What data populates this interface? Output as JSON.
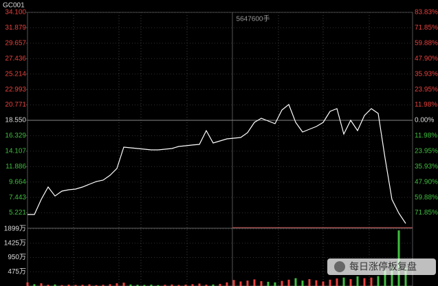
{
  "chart_data": [
    {
      "type": "line",
      "title": "GC001",
      "annotation": "5647600手",
      "values": [
        4.98,
        4.98,
        7.16,
        8.94,
        7.65,
        8.35,
        8.55,
        8.65,
        8.94,
        9.34,
        9.73,
        9.93,
        10.63,
        11.62,
        14.69,
        14.59,
        14.49,
        14.39,
        14.29,
        14.29,
        14.39,
        14.49,
        14.79,
        14.89,
        14.99,
        15.08,
        17.06,
        15.28,
        15.58,
        15.88,
        15.97,
        16.07,
        16.77,
        18.25,
        18.85,
        18.45,
        18.06,
        20.04,
        20.83,
        18.25,
        16.87,
        17.26,
        17.66,
        18.25,
        19.84,
        20.23,
        16.57,
        18.55,
        17.06,
        19.24,
        20.23,
        19.54,
        13.1,
        7.16,
        5.18,
        3.69
      ],
      "color": "#ffffff",
      "ylim": [
        3.0,
        34.1
      ],
      "yticks": [
        {
          "value": 34.1,
          "label": "34.100"
        },
        31.879,
        29.657,
        27.436,
        25.214,
        22.993,
        20.771,
        {
          "value": 18.55,
          "label": "18.550"
        },
        16.329,
        14.107,
        11.886,
        9.664,
        7.443,
        5.221
      ],
      "y2lim": [
        -83.83,
        83.83
      ],
      "y2ticks": [
        {
          "value": 83.83,
          "label": "83.83%"
        },
        {
          "value": 71.85,
          "label": "71.85%"
        },
        {
          "value": 59.88,
          "label": "59.88%"
        },
        {
          "value": 47.9,
          "label": "47.90%"
        },
        {
          "value": 35.93,
          "label": "35.93%"
        },
        {
          "value": 23.95,
          "label": "23.95%"
        },
        {
          "value": 11.98,
          "label": "11.98%"
        },
        {
          "value": 0,
          "label": "0.00%"
        },
        {
          "value": -11.98,
          "label": "11.98%"
        },
        {
          "value": -23.95,
          "label": "23.95%"
        },
        {
          "value": -35.93,
          "label": "35.93%"
        },
        {
          "value": -47.9,
          "label": "47.90%"
        },
        {
          "value": -59.88,
          "label": "59.88%"
        },
        {
          "value": -71.85,
          "label": "71.85%"
        }
      ],
      "up_color": "#e8413d",
      "down_color": "#3fbf3f",
      "grid": true
    },
    {
      "type": "bar",
      "values": [
        120,
        60,
        90,
        40,
        50,
        30,
        45,
        35,
        40,
        55,
        30,
        40,
        60,
        90,
        110,
        50,
        40,
        35,
        45,
        30,
        40,
        50,
        35,
        45,
        60,
        80,
        45,
        50,
        70,
        120,
        200,
        150,
        180,
        220,
        160,
        140,
        120,
        170,
        210,
        260,
        180,
        230,
        190,
        150,
        210,
        250,
        280,
        230,
        320,
        260,
        280,
        330,
        520,
        700,
        1850,
        600
      ],
      "colors": [
        "#e8413d",
        "#3fbf3f",
        "#e8413d",
        "#e8413d",
        "#3fbf3f",
        "#e8413d",
        "#e8413d",
        "#e8413d",
        "#e8413d",
        "#e8413d",
        "#e8413d",
        "#e8413d",
        "#e8413d",
        "#e8413d",
        "#e8413d",
        "#3fbf3f",
        "#3fbf3f",
        "#3fbf3f",
        "#3fbf3f",
        "#3fbf3f",
        "#e8413d",
        "#e8413d",
        "#e8413d",
        "#e8413d",
        "#e8413d",
        "#e8413d",
        "#e8413d",
        "#3fbf3f",
        "#e8413d",
        "#e8413d",
        "#e8413d",
        "#e8413d",
        "#e8413d",
        "#e8413d",
        "#e8413d",
        "#3fbf3f",
        "#3fbf3f",
        "#e8413d",
        "#e8413d",
        "#3fbf3f",
        "#3fbf3f",
        "#e8413d",
        "#e8413d",
        "#e8413d",
        "#e8413d",
        "#e8413d",
        "#3fbf3f",
        "#e8413d",
        "#3fbf3f",
        "#e8413d",
        "#e8413d",
        "#3fbf3f",
        "#3fbf3f",
        "#3fbf3f",
        "#3fbf3f",
        "#3fbf3f"
      ],
      "ylim": [
        0,
        1899
      ],
      "yticks": [
        {
          "value": 1899,
          "label": "1899万"
        },
        {
          "value": 1425,
          "label": "1425万"
        },
        {
          "value": 950,
          "label": "950万"
        },
        {
          "value": 475,
          "label": "475万"
        }
      ],
      "annotation": "每日涨停板复盘"
    }
  ]
}
